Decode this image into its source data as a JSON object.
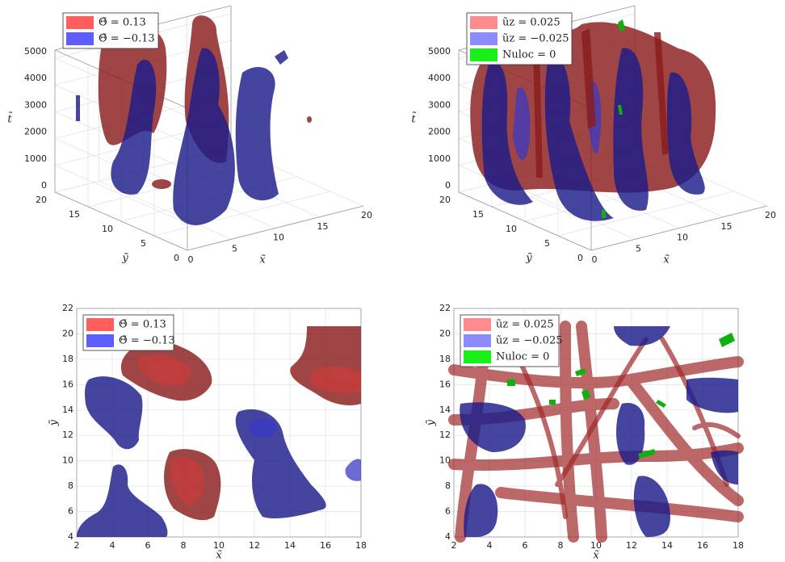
{
  "chart_data": [
    {
      "type": "isosurface3d",
      "xlabel": "x̃",
      "ylabel": "ỹ",
      "zlabel": "t̃",
      "xlim": [
        0,
        20
      ],
      "ylim": [
        0,
        20
      ],
      "zlim": [
        0,
        5300
      ],
      "xticks": [
        0,
        5,
        10,
        15,
        20
      ],
      "yticks": [
        0,
        5,
        10,
        15,
        20
      ],
      "zticks": [
        0,
        1000,
        2000,
        3000,
        4000,
        5000
      ],
      "grid": true,
      "legend": "upper left",
      "series": [
        {
          "name": "Θ̃ = 0.13",
          "color": "#ff4d4d"
        },
        {
          "name": "Θ̃ = −0.13",
          "color": "#4d4dff"
        }
      ]
    },
    {
      "type": "isosurface3d",
      "xlabel": "x̃",
      "ylabel": "ỹ",
      "zlabel": "t̃",
      "xlim": [
        0,
        20
      ],
      "ylim": [
        0,
        20
      ],
      "zlim": [
        0,
        5300
      ],
      "xticks": [
        0,
        5,
        10,
        15,
        20
      ],
      "yticks": [
        0,
        5,
        10,
        15,
        20
      ],
      "zticks": [
        0,
        1000,
        2000,
        3000,
        4000,
        5000
      ],
      "grid": true,
      "legend": "upper left",
      "series": [
        {
          "name": "ũz = 0.025",
          "color": "#ff8080"
        },
        {
          "name": "ũz = −0.025",
          "color": "#8080ff"
        },
        {
          "name": "Nuloc = 0",
          "color": "#00ee00"
        }
      ]
    },
    {
      "type": "isosurface2d",
      "xlabel": "x̃",
      "ylabel": "ỹ",
      "xlim": [
        2,
        18
      ],
      "ylim": [
        4,
        22
      ],
      "xticks": [
        2,
        4,
        6,
        8,
        10,
        12,
        14,
        16,
        18
      ],
      "yticks": [
        4,
        6,
        8,
        10,
        12,
        14,
        16,
        18,
        20,
        22
      ],
      "grid": true,
      "legend": "upper left",
      "series": [
        {
          "name": "Θ̃ = 0.13",
          "color": "#ff4d4d"
        },
        {
          "name": "Θ̃ = −0.13",
          "color": "#4d4dff"
        }
      ]
    },
    {
      "type": "isosurface2d",
      "xlabel": "x̃",
      "ylabel": "ỹ",
      "xlim": [
        2,
        18
      ],
      "ylim": [
        4,
        22
      ],
      "xticks": [
        2,
        4,
        6,
        8,
        10,
        12,
        14,
        16,
        18
      ],
      "yticks": [
        4,
        6,
        8,
        10,
        12,
        14,
        16,
        18,
        20,
        22
      ],
      "grid": true,
      "legend": "upper left",
      "series": [
        {
          "name": "ũz = 0.025",
          "color": "#ff8080"
        },
        {
          "name": "ũz = −0.025",
          "color": "#8080ff"
        },
        {
          "name": "Nuloc = 0",
          "color": "#00ee00"
        }
      ]
    }
  ]
}
